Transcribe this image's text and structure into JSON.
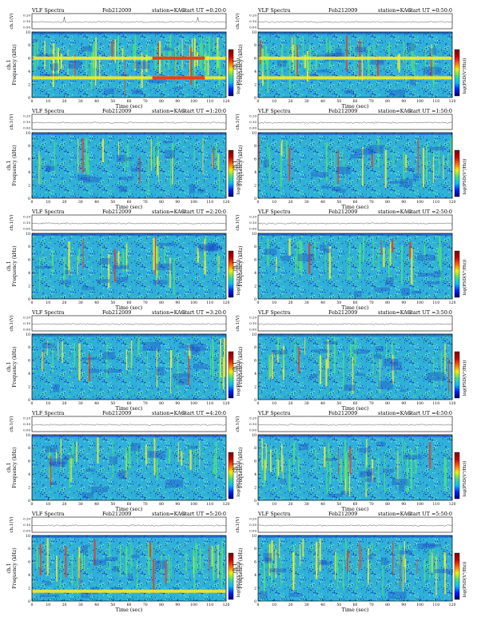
{
  "colors": {
    "spectrogram_base": "#2fb0d8",
    "low": "#1a3fc8",
    "mid": "#4fe07a",
    "high": "#f2ec2a",
    "peak": "#e8401c",
    "colorbar": [
      "#000070",
      "#0020ff",
      "#00c0ff",
      "#40e080",
      "#f0f000",
      "#ff6000",
      "#c00000",
      "#800000"
    ]
  },
  "chart_data": [
    {
      "type": "heatmap",
      "title_left": "VLF Spectra",
      "date": "Feb212009",
      "station": "station=KAG",
      "start": "start UT =0:20:0",
      "ylabel": "Frequency (kHz)",
      "channel_label": "ch.1",
      "xlabel": "Time (sec)",
      "colorbar_label": "log(PSD(V²/Hz))",
      "xlim": [
        0,
        120
      ],
      "ylim": [
        0,
        10
      ],
      "xticks": [
        "0",
        "10",
        "20",
        "30",
        "40",
        "50",
        "60",
        "70",
        "80",
        "90",
        "100",
        "110",
        "120"
      ],
      "yticks": [
        "0",
        "2",
        "4",
        "6",
        "8",
        "10"
      ],
      "vticks": [
        "0.00",
        "0.10",
        "0.20"
      ],
      "vlabel": "ch.1(V)",
      "bands_khz": [
        6.0,
        3.0
      ],
      "activity": "high"
    },
    {
      "type": "heatmap",
      "title_left": "VLF Spectra",
      "date": "Feb212009",
      "station": "station=KAG",
      "start": "start UT =0:50:0",
      "ylabel": "Frequency (kHz)",
      "channel_label": "ch.1",
      "xlabel": "Time (sec)",
      "colorbar_label": "log(PSD(V²/Hz))",
      "xlim": [
        0,
        120
      ],
      "ylim": [
        0,
        10
      ],
      "xticks": [
        "0",
        "10",
        "20",
        "30",
        "40",
        "50",
        "60",
        "70",
        "80",
        "90",
        "100",
        "110",
        "120"
      ],
      "yticks": [
        "0",
        "2",
        "4",
        "6",
        "8",
        "10"
      ],
      "vticks": [
        "0.00",
        "0.10",
        "0.20"
      ],
      "vlabel": "ch.1(V)",
      "bands_khz": [
        6.0,
        3.0
      ],
      "activity": "medium"
    },
    {
      "type": "heatmap",
      "title_left": "VLF Spectra",
      "date": "Feb212009",
      "station": "station=KAG",
      "start": "start UT =1:20:0",
      "ylabel": "Frequency (kHz)",
      "channel_label": "ch.1",
      "xlabel": "Time (sec)",
      "colorbar_label": "log(PSD(V²/Hz))",
      "xlim": [
        0,
        120
      ],
      "ylim": [
        0,
        10
      ],
      "xticks": [
        "0",
        "10",
        "20",
        "30",
        "40",
        "50",
        "60",
        "70",
        "80",
        "90",
        "100",
        "110",
        "120"
      ],
      "yticks": [
        "0",
        "2",
        "4",
        "6",
        "8",
        "10"
      ],
      "vticks": [
        "0.00",
        "0.10",
        "0.20"
      ],
      "vlabel": "ch.1(V)",
      "bands_khz": [],
      "activity": "low"
    },
    {
      "type": "heatmap",
      "title_left": "VLF Spectra",
      "date": "Feb212009",
      "station": "station=KAG",
      "start": "start UT =1:50:0",
      "ylabel": "Frequency (kHz)",
      "channel_label": "ch.1",
      "xlabel": "Time (sec)",
      "colorbar_label": "log(PSD(V²/Hz))",
      "xlim": [
        0,
        120
      ],
      "ylim": [
        0,
        10
      ],
      "xticks": [
        "0",
        "10",
        "20",
        "30",
        "40",
        "50",
        "60",
        "70",
        "80",
        "90",
        "100",
        "110",
        "120"
      ],
      "yticks": [
        "0",
        "2",
        "4",
        "6",
        "8",
        "10"
      ],
      "vticks": [
        "0.00",
        "0.10",
        "0.20"
      ],
      "vlabel": "ch.1(V)",
      "bands_khz": [],
      "activity": "low"
    },
    {
      "type": "heatmap",
      "title_left": "VLF Spectra",
      "date": "Feb212009",
      "station": "station=KAG",
      "start": "start UT =2:20:0",
      "ylabel": "Frequency (kHz)",
      "channel_label": "ch.1",
      "xlabel": "Time (sec)",
      "colorbar_label": "log(PSD(V²/Hz))",
      "xlim": [
        0,
        120
      ],
      "ylim": [
        0,
        10
      ],
      "xticks": [
        "0",
        "10",
        "20",
        "30",
        "40",
        "50",
        "60",
        "70",
        "80",
        "90",
        "100",
        "110",
        "120"
      ],
      "yticks": [
        "0",
        "2",
        "4",
        "6",
        "8",
        "10"
      ],
      "vticks": [
        "0.00",
        "0.10",
        "0.20"
      ],
      "vlabel": "ch.1(V)",
      "bands_khz": [],
      "activity": "low"
    },
    {
      "type": "heatmap",
      "title_left": "VLF Spectra",
      "date": "Feb212009",
      "station": "station=KAG",
      "start": "start UT =2:50:0",
      "ylabel": "Frequency (kHz)",
      "channel_label": "ch.1",
      "xlabel": "Time (sec)",
      "colorbar_label": "log(PSD(V²/Hz))",
      "xlim": [
        0,
        120
      ],
      "ylim": [
        0,
        10
      ],
      "xticks": [
        "0",
        "10",
        "20",
        "30",
        "40",
        "50",
        "60",
        "70",
        "80",
        "90",
        "100",
        "110",
        "120"
      ],
      "yticks": [
        "0",
        "2",
        "4",
        "6",
        "8",
        "10"
      ],
      "vticks": [
        "0.00",
        "0.10",
        "0.20"
      ],
      "vlabel": "ch.1(V)",
      "bands_khz": [],
      "activity": "low"
    },
    {
      "type": "heatmap",
      "title_left": "VLF Spectra",
      "date": "Feb212009",
      "station": "station=KAG",
      "start": "start UT =3:20:0",
      "ylabel": "Frequency (kHz)",
      "channel_label": "ch.1",
      "xlabel": "Time (sec)",
      "colorbar_label": "log(PSD(V²/Hz))",
      "xlim": [
        0,
        120
      ],
      "ylim": [
        0,
        10
      ],
      "xticks": [
        "0",
        "10",
        "20",
        "30",
        "40",
        "50",
        "60",
        "70",
        "80",
        "90",
        "100",
        "110",
        "120"
      ],
      "yticks": [
        "0",
        "2",
        "4",
        "6",
        "8",
        "10"
      ],
      "vticks": [
        "0.00",
        "0.10",
        "0.20"
      ],
      "vlabel": "ch.1(V)",
      "bands_khz": [],
      "activity": "low"
    },
    {
      "type": "heatmap",
      "title_left": "VLF Spectra",
      "date": "Feb212009",
      "station": "station=KAG",
      "start": "start UT =3:50:0",
      "ylabel": "Frequency (kHz)",
      "channel_label": "ch.1",
      "xlabel": "Time (sec)",
      "colorbar_label": "log(PSD(V²/Hz))",
      "xlim": [
        0,
        120
      ],
      "ylim": [
        0,
        10
      ],
      "xticks": [
        "0",
        "10",
        "20",
        "30",
        "40",
        "50",
        "60",
        "70",
        "80",
        "90",
        "100",
        "110",
        "120"
      ],
      "yticks": [
        "0",
        "2",
        "4",
        "6",
        "8",
        "10"
      ],
      "vticks": [
        "0.00",
        "0.10",
        "0.20"
      ],
      "vlabel": "ch.1(V)",
      "bands_khz": [],
      "activity": "low"
    },
    {
      "type": "heatmap",
      "title_left": "VLF Spectra",
      "date": "Feb212009",
      "station": "station=KAG",
      "start": "start UT =4:20:0",
      "ylabel": "Frequency (kHz)",
      "channel_label": "ch.1",
      "xlabel": "Time (sec)",
      "colorbar_label": "log(PSD(V²/Hz))",
      "xlim": [
        0,
        120
      ],
      "ylim": [
        0,
        10
      ],
      "xticks": [
        "0",
        "10",
        "20",
        "30",
        "40",
        "50",
        "60",
        "70",
        "80",
        "90",
        "100",
        "110",
        "120"
      ],
      "yticks": [
        "0",
        "2",
        "4",
        "6",
        "8",
        "10"
      ],
      "vticks": [
        "0.00",
        "0.10",
        "0.20"
      ],
      "vlabel": "ch.1(V)",
      "bands_khz": [],
      "activity": "low"
    },
    {
      "type": "heatmap",
      "title_left": "VLF Spectra",
      "date": "Feb212009",
      "station": "station=KAG",
      "start": "start UT =4:50:0",
      "ylabel": "Frequency (kHz)",
      "channel_label": "ch.1",
      "xlabel": "Time (sec)",
      "colorbar_label": "log(PSD(V²/Hz))",
      "xlim": [
        0,
        120
      ],
      "ylim": [
        0,
        10
      ],
      "xticks": [
        "0",
        "10",
        "20",
        "30",
        "40",
        "50",
        "60",
        "70",
        "80",
        "90",
        "100",
        "110",
        "120"
      ],
      "yticks": [
        "0",
        "2",
        "4",
        "6",
        "8",
        "10"
      ],
      "vticks": [
        "0.00",
        "0.10",
        "0.20"
      ],
      "vlabel": "ch.1(V)",
      "bands_khz": [],
      "activity": "medium"
    },
    {
      "type": "heatmap",
      "title_left": "VLF Spectra",
      "date": "Feb212009",
      "station": "station=KAG",
      "start": "start UT =5:20:0",
      "ylabel": "Frequency (kHz)",
      "channel_label": "ch.1",
      "xlabel": "Time (sec)",
      "colorbar_label": "log(PSD(V²/Hz))",
      "xlim": [
        0,
        120
      ],
      "ylim": [
        0,
        10
      ],
      "xticks": [
        "0",
        "10",
        "20",
        "30",
        "40",
        "50",
        "60",
        "70",
        "80",
        "90",
        "100",
        "110",
        "120"
      ],
      "yticks": [
        "0",
        "2",
        "4",
        "6",
        "8",
        "10"
      ],
      "vticks": [
        "0.00",
        "0.10",
        "0.20"
      ],
      "vlabel": "ch.1(V)",
      "bands_khz": [
        1.5
      ],
      "activity": "medium"
    },
    {
      "type": "heatmap",
      "title_left": "VLF Spectra",
      "date": "Feb212009",
      "station": "station=KAG",
      "start": "start UT =5:50:0",
      "ylabel": "Frequency (kHz)",
      "channel_label": "ch.1",
      "xlabel": "Time (sec)",
      "colorbar_label": "log(PSD(V²/Hz))",
      "xlim": [
        0,
        120
      ],
      "ylim": [
        0,
        10
      ],
      "xticks": [
        "0",
        "10",
        "20",
        "30",
        "40",
        "50",
        "60",
        "70",
        "80",
        "90",
        "100",
        "110",
        "120"
      ],
      "yticks": [
        "0",
        "2",
        "4",
        "6",
        "8",
        "10"
      ],
      "vticks": [
        "0.00",
        "0.10",
        "0.20"
      ],
      "vlabel": "ch.1(V)",
      "bands_khz": [],
      "activity": "medium"
    }
  ]
}
